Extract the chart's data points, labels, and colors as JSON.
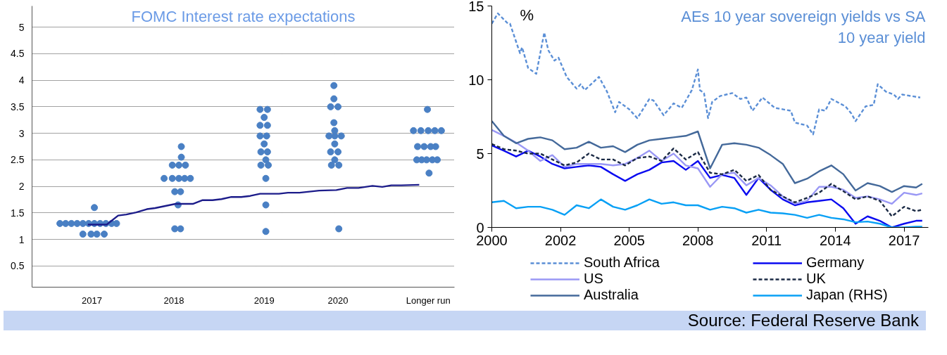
{
  "chart_data": [
    {
      "type": "scatter",
      "title": "FOMC Interest rate expectations",
      "xlim": [
        2016.27,
        2021.42
      ],
      "ylim": [
        0.1,
        5.4
      ],
      "xticks": [
        2017,
        2018,
        {
          "value": 2019.1,
          "label": "2019"
        },
        2020,
        {
          "value": 2021.1,
          "label": "Longer run"
        }
      ],
      "yticks": [
        0.5,
        1,
        1.5,
        2,
        2.5,
        3,
        3.5,
        4,
        4.5,
        5
      ],
      "grid": "y",
      "series": [
        {
          "type": "scatter",
          "marker": "circle",
          "color": "#4a80c4",
          "x": [
            2016.61,
            2016.68,
            2016.75,
            2016.82,
            2016.89,
            2016.96,
            2017.03,
            2017.1,
            2017.17,
            2017.24,
            2017.3,
            2016.89,
            2016.99,
            2017.06,
            2017.15,
            2017.03,
            2018.09,
            2018.09,
            2017.98,
            2018.06,
            2018.14,
            2017.88,
            2017.98,
            2018.06,
            2018.13,
            2018.2,
            2018.01,
            2018.08,
            2018.05,
            2018.01,
            2018.08,
            2019.05,
            2019.14,
            2019.1,
            2019.05,
            2019.14,
            2019.05,
            2019.13,
            2019.1,
            2019.06,
            2019.14,
            2019.12,
            2019.06,
            2019.15,
            2019.12,
            2019.12,
            2019.12,
            2019.95,
            2019.95,
            2019.91,
            2020.0,
            2019.95,
            2019.96,
            2019.89,
            2019.96,
            2020.04,
            2019.96,
            2019.91,
            2020.0,
            2019.96,
            2019.92,
            2020.01,
            2020.01,
            2021.09,
            2020.92,
            2021.01,
            2021.1,
            2021.18,
            2021.26,
            2020.97,
            2021.05,
            2021.13,
            2021.19,
            2020.96,
            2021.02,
            2021.08,
            2021.15,
            2021.21,
            2021.11
          ],
          "values": [
            1.3,
            1.3,
            1.3,
            1.3,
            1.3,
            1.3,
            1.3,
            1.3,
            1.3,
            1.3,
            1.3,
            1.1,
            1.1,
            1.1,
            1.1,
            1.6,
            2.75,
            2.55,
            2.4,
            2.4,
            2.4,
            2.15,
            2.15,
            2.15,
            2.15,
            2.15,
            1.9,
            1.9,
            1.65,
            1.2,
            1.2,
            3.45,
            3.45,
            3.3,
            3.15,
            3.15,
            2.95,
            2.95,
            2.8,
            2.65,
            2.65,
            2.5,
            2.4,
            2.4,
            2.15,
            1.65,
            1.15,
            3.9,
            3.65,
            3.5,
            3.5,
            3.2,
            3.05,
            2.95,
            2.95,
            2.95,
            2.8,
            2.65,
            2.65,
            2.5,
            2.4,
            2.4,
            1.2,
            3.45,
            3.05,
            3.05,
            3.05,
            3.05,
            3.05,
            2.75,
            2.75,
            2.75,
            2.75,
            2.5,
            2.5,
            2.5,
            2.5,
            2.5,
            2.25
          ]
        },
        {
          "type": "line",
          "color": "#1c1c8a",
          "x": [
            2016.95,
            2017.18,
            2017.32,
            2017.42,
            2017.54,
            2017.67,
            2017.77,
            2018.02,
            2018.23,
            2018.35,
            2018.47,
            2018.58,
            2018.7,
            2018.82,
            2018.93,
            2019.05,
            2019.28,
            2019.39,
            2019.53,
            2019.77,
            2019.98,
            2020.11,
            2020.25,
            2020.42,
            2020.54,
            2020.65,
            2020.77,
            2020.99
          ],
          "values": [
            1.28,
            1.28,
            1.45,
            1.47,
            1.51,
            1.57,
            1.59,
            1.67,
            1.67,
            1.74,
            1.74,
            1.76,
            1.8,
            1.8,
            1.82,
            1.86,
            1.86,
            1.88,
            1.88,
            1.92,
            1.93,
            1.97,
            1.97,
            2.01,
            1.99,
            2.02,
            2.02,
            2.03
          ]
        }
      ]
    },
    {
      "type": "line",
      "title": "AEs 10 year sovereign yields vs SA 10 year yield",
      "ylabel": "%",
      "xlim": [
        "2000-01",
        "2018-01"
      ],
      "ylim": [
        0,
        15
      ],
      "xticks": [
        "2000",
        {
          "value": "2002-11",
          "label": "2002"
        },
        {
          "value": "2005-09",
          "label": "2005"
        },
        {
          "value": "2008-07",
          "label": "2008"
        },
        {
          "value": "2011-05",
          "label": "2011"
        },
        {
          "value": "2014-03",
          "label": "2014"
        },
        "2017"
      ],
      "yticks": [
        0,
        5,
        10,
        15
      ],
      "legend": "bottom",
      "annotations": [
        "Source: Federal Reserve Bank"
      ],
      "x": [
        "2000-01",
        "2000-07",
        "2001-01",
        "2001-07",
        "2002-01",
        "2002-07",
        "2003-01",
        "2003-07",
        "2004-01",
        "2004-07",
        "2005-01",
        "2005-07",
        "2006-01",
        "2006-07",
        "2007-01",
        "2007-07",
        "2008-01",
        "2008-07",
        "2009-01",
        "2009-07",
        "2010-01",
        "2010-07",
        "2011-01",
        "2011-07",
        "2012-01",
        "2012-07",
        "2013-01",
        "2013-07",
        "2014-01",
        "2014-07",
        "2015-01",
        "2015-07",
        "2016-01",
        "2016-07",
        "2017-01",
        "2017-07",
        "2017-10"
      ],
      "series": [
        {
          "name": "South Africa",
          "color": "#5b8fd6",
          "line_style": "dashed",
          "x": [
            "2000-01",
            "2000-04",
            "2000-09",
            "2000-10",
            "2001-03",
            "2001-04",
            "2001-07",
            "2001-11",
            "2002-03",
            "2002-05",
            "2002-08",
            "2002-10",
            "2003-02",
            "2003-07",
            "2003-09",
            "2003-11",
            "2004-06",
            "2004-10",
            "2005-02",
            "2005-04",
            "2005-09",
            "2006-01",
            "2006-07",
            "2006-09",
            "2007-02",
            "2007-07",
            "2007-11",
            "2008-04",
            "2008-07",
            "2008-08",
            "2008-10",
            "2008-12",
            "2009-02",
            "2009-06",
            "2009-12",
            "2010-04",
            "2010-07",
            "2010-10",
            "2011-03",
            "2011-09",
            "2012-05",
            "2012-07",
            "2013-01",
            "2013-04",
            "2013-07",
            "2013-10",
            "2014-01",
            "2014-08",
            "2014-11",
            "2015-01",
            "2015-06",
            "2015-10",
            "2015-12",
            "2016-04",
            "2016-08",
            "2016-10",
            "2016-12",
            "2017-09"
          ],
          "values": [
            13.8,
            14.5,
            13.8,
            13.8,
            11.8,
            12.2,
            10.8,
            10.4,
            13.2,
            12.0,
            11.3,
            11.5,
            10.2,
            9.4,
            9.7,
            9.3,
            10.2,
            9.2,
            7.8,
            8.5,
            8.0,
            7.4,
            8.7,
            8.6,
            7.6,
            8.4,
            8.1,
            9.3,
            10.7,
            9.3,
            9.1,
            7.4,
            8.5,
            8.9,
            9.1,
            8.7,
            8.8,
            7.9,
            8.8,
            8.1,
            7.9,
            7.1,
            6.9,
            6.3,
            8.0,
            7.9,
            8.7,
            8.2,
            7.7,
            7.2,
            8.2,
            8.3,
            9.7,
            9.2,
            9.0,
            8.7,
            9.0,
            8.8
          ]
        },
        {
          "name": "Germany",
          "color": "#0a0af0",
          "line_style": "solid",
          "values": [
            5.55,
            5.2,
            4.8,
            5.2,
            4.8,
            4.3,
            4.0,
            4.1,
            4.2,
            4.1,
            3.6,
            3.15,
            3.6,
            3.9,
            4.4,
            4.5,
            3.9,
            4.5,
            3.35,
            3.55,
            3.35,
            2.2,
            3.35,
            2.55,
            1.9,
            1.5,
            1.7,
            1.8,
            1.9,
            1.3,
            0.25,
            0.75,
            0.45,
            0,
            0.25,
            0.45,
            0.45
          ]
        },
        {
          "name": "US",
          "color": "#9a98f5",
          "line_style": "solid",
          "values": [
            6.6,
            6.2,
            5.75,
            5.2,
            4.5,
            4.9,
            4.1,
            4.3,
            4.3,
            4.3,
            4.2,
            4.3,
            4.7,
            5.2,
            4.5,
            5.0,
            4.2,
            4.0,
            2.75,
            3.6,
            3.7,
            2.85,
            3.35,
            2.85,
            2.1,
            1.6,
            1.8,
            2.75,
            2.75,
            2.55,
            2.0,
            2.1,
            1.9,
            1.6,
            2.35,
            2.2,
            2.3
          ]
        },
        {
          "name": "UK",
          "color": "#1b2a45",
          "line_style": "dashed",
          "values": [
            5.65,
            5.3,
            5.2,
            5.0,
            5.0,
            4.6,
            4.2,
            4.4,
            5.0,
            4.6,
            4.6,
            4.2,
            4.7,
            4.8,
            4.5,
            5.35,
            4.6,
            5.1,
            3.7,
            3.6,
            3.9,
            3.15,
            3.55,
            2.55,
            2.1,
            1.7,
            2.0,
            2.35,
            2.95,
            2.45,
            1.9,
            2.1,
            1.8,
            0.75,
            1.4,
            1.1,
            1.2
          ]
        },
        {
          "name": "Australia",
          "color": "#44699a",
          "line_style": "solid",
          "values": [
            7.2,
            6.2,
            5.7,
            6.0,
            6.1,
            5.9,
            5.3,
            5.4,
            5.8,
            5.4,
            5.5,
            5.1,
            5.6,
            5.9,
            6.0,
            6.1,
            6.2,
            6.5,
            4.0,
            5.6,
            5.7,
            5.6,
            5.4,
            4.9,
            4.3,
            3.0,
            3.3,
            3.8,
            4.2,
            3.6,
            2.5,
            3.0,
            2.8,
            2.4,
            2.8,
            2.7,
            2.95
          ]
        },
        {
          "name": "Japan (RHS)",
          "color": "#08a0f5",
          "line_style": "solid",
          "values": [
            1.7,
            1.8,
            1.3,
            1.4,
            1.4,
            1.2,
            0.85,
            1.5,
            1.3,
            1.9,
            1.4,
            1.2,
            1.5,
            1.9,
            1.6,
            1.7,
            1.5,
            1.5,
            1.2,
            1.4,
            1.3,
            1.0,
            1.2,
            1.0,
            0.95,
            0.85,
            0.65,
            0.85,
            0.65,
            0.55,
            0.35,
            0.4,
            0.25,
            0,
            0,
            0.05,
            0.05
          ]
        }
      ]
    }
  ]
}
